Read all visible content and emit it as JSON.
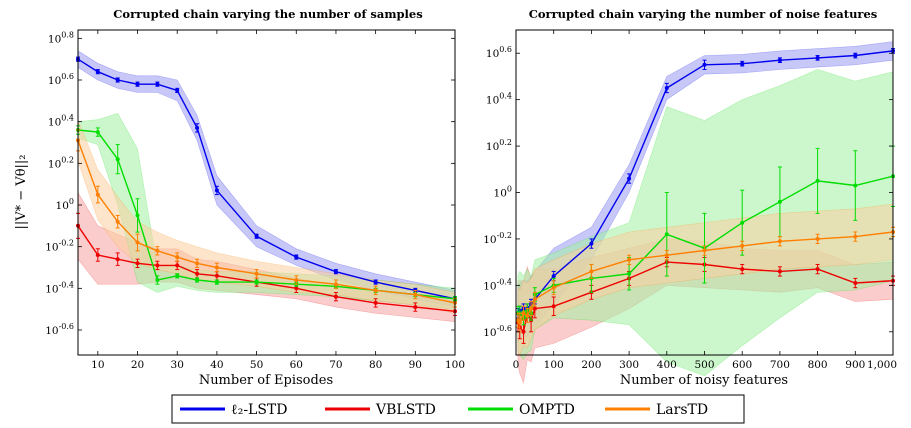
{
  "colors": {
    "blue": "#0000ee",
    "red": "#ee0000",
    "green": "#00dd00",
    "orange": "#ff7f00",
    "blue_fill": "#9a9af2",
    "red_fill": "#f5a3a3",
    "green_fill": "#a3f0a3",
    "orange_fill": "#fbd0a0"
  },
  "shared": {
    "ylabel": "||V* − Vθ||₂"
  },
  "legend": [
    {
      "label": "ℓ₂-LSTD",
      "color": "#0000ee"
    },
    {
      "label": "VBLSTD",
      "color": "#ee0000"
    },
    {
      "label": "OMPTD",
      "color": "#00dd00"
    },
    {
      "label": "LarsTD",
      "color": "#ff7f00"
    }
  ],
  "chart_data": [
    {
      "type": "line",
      "title": "Corrupted chain varying the number of samples",
      "xlabel": "Number of Episodes",
      "ylabel": "||V* − Vθ||₂",
      "xlim": [
        5,
        100
      ],
      "ylim": [
        -0.72,
        0.84
      ],
      "yscale": "log10",
      "xticks": [
        10,
        20,
        30,
        40,
        50,
        60,
        70,
        80,
        90,
        100
      ],
      "yticks": [
        {
          "v": 0.8,
          "base": "10",
          "exp": "0.8"
        },
        {
          "v": 0.6,
          "base": "10",
          "exp": "0.6"
        },
        {
          "v": 0.4,
          "base": "10",
          "exp": "0.4"
        },
        {
          "v": 0.2,
          "base": "10",
          "exp": "0.2"
        },
        {
          "v": 0,
          "base": "10",
          "exp": "0"
        },
        {
          "v": -0.2,
          "base": "10",
          "exp": "-0.2"
        },
        {
          "v": -0.4,
          "base": "10",
          "exp": "-0.4"
        },
        {
          "v": -0.6,
          "base": "10",
          "exp": "-0.6"
        }
      ],
      "series": [
        {
          "name": "ℓ₂-LSTD",
          "color": "#0000ee",
          "fill": "#9a9af2",
          "x": [
            5,
            10,
            15,
            20,
            25,
            30,
            35,
            40,
            50,
            60,
            70,
            80,
            90,
            100
          ],
          "y": [
            0.7,
            0.64,
            0.6,
            0.58,
            0.58,
            0.55,
            0.37,
            0.07,
            -0.15,
            -0.25,
            -0.32,
            -0.37,
            -0.41,
            -0.45
          ],
          "err": [
            0.01,
            0.01,
            0.01,
            0.01,
            0.01,
            0.01,
            0.02,
            0.02,
            0.01,
            0.01,
            0.01,
            0.01,
            0.01,
            0.01
          ],
          "band": [
            0.04,
            0.04,
            0.04,
            0.04,
            0.04,
            0.05,
            0.06,
            0.07,
            0.05,
            0.04,
            0.04,
            0.04,
            0.04,
            0.04
          ]
        },
        {
          "name": "VBLSTD",
          "color": "#ee0000",
          "fill": "#f5a3a3",
          "x": [
            5,
            10,
            15,
            20,
            25,
            30,
            35,
            40,
            50,
            60,
            70,
            80,
            90,
            100
          ],
          "y": [
            -0.1,
            -0.24,
            -0.26,
            -0.28,
            -0.29,
            -0.29,
            -0.33,
            -0.34,
            -0.37,
            -0.4,
            -0.44,
            -0.47,
            -0.49,
            -0.51
          ],
          "err": [
            0.06,
            0.03,
            0.03,
            0.02,
            0.02,
            0.02,
            0.02,
            0.02,
            0.02,
            0.02,
            0.02,
            0.02,
            0.02,
            0.02
          ],
          "band": [
            0.16,
            0.14,
            0.12,
            0.1,
            0.08,
            0.08,
            0.07,
            0.07,
            0.06,
            0.05,
            0.05,
            0.05,
            0.05,
            0.05
          ]
        },
        {
          "name": "OMPTD",
          "color": "#00dd00",
          "fill": "#a3f0a3",
          "x": [
            5,
            10,
            15,
            20,
            25,
            30,
            35,
            40,
            50,
            60,
            70,
            80,
            90,
            100
          ],
          "y": [
            0.36,
            0.35,
            0.22,
            -0.05,
            -0.36,
            -0.34,
            -0.36,
            -0.37,
            -0.37,
            -0.38,
            -0.39,
            -0.41,
            -0.43,
            -0.45
          ],
          "err": [
            0.02,
            0.02,
            0.07,
            0.08,
            0.02,
            0.01,
            0.01,
            0.01,
            0.01,
            0.01,
            0.01,
            0.01,
            0.01,
            0.01
          ],
          "band": [
            0.04,
            0.06,
            0.22,
            0.32,
            0.06,
            0.05,
            0.05,
            0.05,
            0.05,
            0.05,
            0.05,
            0.05,
            0.05,
            0.05
          ]
        },
        {
          "name": "LarsTD",
          "color": "#ff7f00",
          "fill": "#fbd0a0",
          "x": [
            5,
            10,
            15,
            20,
            25,
            30,
            35,
            40,
            50,
            60,
            70,
            80,
            90,
            100
          ],
          "y": [
            0.31,
            0.05,
            -0.08,
            -0.18,
            -0.22,
            -0.25,
            -0.28,
            -0.3,
            -0.33,
            -0.36,
            -0.38,
            -0.41,
            -0.43,
            -0.47
          ],
          "err": [
            0.05,
            0.04,
            0.03,
            0.04,
            0.02,
            0.02,
            0.02,
            0.02,
            0.02,
            0.02,
            0.02,
            0.02,
            0.02,
            0.02
          ],
          "band": [
            0.1,
            0.12,
            0.12,
            0.1,
            0.09,
            0.08,
            0.08,
            0.07,
            0.06,
            0.06,
            0.05,
            0.05,
            0.05,
            0.05
          ]
        }
      ]
    },
    {
      "type": "line",
      "title": "Corrupted chain varying the number of noise features",
      "xlabel": "Number of noisy features",
      "xlim": [
        0,
        1000
      ],
      "ylim": [
        -0.7,
        0.7
      ],
      "yscale": "log10",
      "xticks": [
        0,
        100,
        200,
        300,
        400,
        500,
        600,
        700,
        800,
        900,
        1000
      ],
      "xticklabels": [
        "0",
        "100",
        "200",
        "300",
        "400",
        "500",
        "600",
        "700",
        "800",
        "900",
        "1,000"
      ],
      "yticks": [
        {
          "v": 0.6,
          "base": "10",
          "exp": "0.6"
        },
        {
          "v": 0.4,
          "base": "10",
          "exp": "0.4"
        },
        {
          "v": 0.2,
          "base": "10",
          "exp": "0.2"
        },
        {
          "v": 0,
          "base": "10",
          "exp": "0"
        },
        {
          "v": -0.2,
          "base": "10",
          "exp": "-0.2"
        },
        {
          "v": -0.4,
          "base": "10",
          "exp": "-0.4"
        },
        {
          "v": -0.6,
          "base": "10",
          "exp": "-0.6"
        }
      ],
      "series": [
        {
          "name": "ℓ₂-LSTD",
          "color": "#0000ee",
          "fill": "#9a9af2",
          "x": [
            5,
            10,
            20,
            30,
            40,
            50,
            100,
            200,
            300,
            400,
            500,
            600,
            700,
            800,
            900,
            1000
          ],
          "y": [
            -0.52,
            -0.51,
            -0.5,
            -0.5,
            -0.48,
            -0.46,
            -0.36,
            -0.22,
            0.06,
            0.45,
            0.55,
            0.555,
            0.57,
            0.58,
            0.59,
            0.61
          ],
          "err": [
            0.02,
            0.02,
            0.02,
            0.02,
            0.02,
            0.02,
            0.02,
            0.02,
            0.02,
            0.02,
            0.02,
            0.01,
            0.01,
            0.01,
            0.01,
            0.01
          ],
          "band": [
            0.12,
            0.12,
            0.12,
            0.12,
            0.12,
            0.12,
            0.12,
            0.07,
            0.06,
            0.05,
            0.04,
            0.04,
            0.04,
            0.04,
            0.04,
            0.04
          ]
        },
        {
          "name": "VBLSTD",
          "color": "#ee0000",
          "fill": "#f5a3a3",
          "x": [
            5,
            10,
            20,
            30,
            40,
            50,
            100,
            200,
            300,
            400,
            500,
            600,
            700,
            800,
            900,
            1000
          ],
          "y": [
            -0.56,
            -0.58,
            -0.6,
            -0.52,
            -0.55,
            -0.5,
            -0.49,
            -0.43,
            -0.37,
            -0.3,
            -0.31,
            -0.33,
            -0.34,
            -0.33,
            -0.39,
            -0.38
          ],
          "err": [
            0.04,
            0.05,
            0.05,
            0.04,
            0.05,
            0.04,
            0.04,
            0.03,
            0.03,
            0.02,
            0.03,
            0.02,
            0.02,
            0.02,
            0.02,
            0.02
          ],
          "band": [
            0.18,
            0.2,
            0.22,
            0.2,
            0.18,
            0.17,
            0.16,
            0.15,
            0.13,
            0.1,
            0.1,
            0.09,
            0.09,
            0.08,
            0.08,
            0.08
          ]
        },
        {
          "name": "OMPTD",
          "color": "#00dd00",
          "fill": "#a3f0a3",
          "x": [
            5,
            10,
            20,
            30,
            40,
            50,
            100,
            200,
            300,
            400,
            500,
            600,
            700,
            800,
            900,
            1000
          ],
          "y": [
            -0.52,
            -0.52,
            -0.54,
            -0.51,
            -0.52,
            -0.44,
            -0.4,
            -0.37,
            -0.35,
            -0.18,
            -0.24,
            -0.13,
            -0.04,
            0.05,
            0.03,
            0.07
          ],
          "err": [
            0.03,
            0.03,
            0.03,
            0.03,
            0.03,
            0.03,
            0.03,
            0.06,
            0.07,
            0.18,
            0.15,
            0.14,
            0.15,
            0.14,
            0.15,
            0.13
          ],
          "band": [
            0.16,
            0.18,
            0.18,
            0.18,
            0.16,
            0.15,
            0.14,
            0.18,
            0.22,
            0.55,
            0.55,
            0.53,
            0.5,
            0.48,
            0.45,
            0.45
          ]
        },
        {
          "name": "LarsTD",
          "color": "#ff7f00",
          "fill": "#fbd0a0",
          "x": [
            5,
            10,
            20,
            30,
            40,
            50,
            100,
            200,
            300,
            400,
            500,
            600,
            700,
            800,
            900,
            1000
          ],
          "y": [
            -0.55,
            -0.56,
            -0.52,
            -0.53,
            -0.5,
            -0.46,
            -0.41,
            -0.34,
            -0.29,
            -0.27,
            -0.25,
            -0.23,
            -0.21,
            -0.2,
            -0.19,
            -0.17
          ],
          "err": [
            0.03,
            0.04,
            0.03,
            0.03,
            0.03,
            0.03,
            0.03,
            0.03,
            0.02,
            0.02,
            0.02,
            0.02,
            0.02,
            0.02,
            0.02,
            0.02
          ],
          "band": [
            0.14,
            0.14,
            0.14,
            0.14,
            0.13,
            0.13,
            0.12,
            0.12,
            0.12,
            0.12,
            0.12,
            0.12,
            0.12,
            0.12,
            0.12,
            0.12
          ]
        }
      ]
    }
  ]
}
